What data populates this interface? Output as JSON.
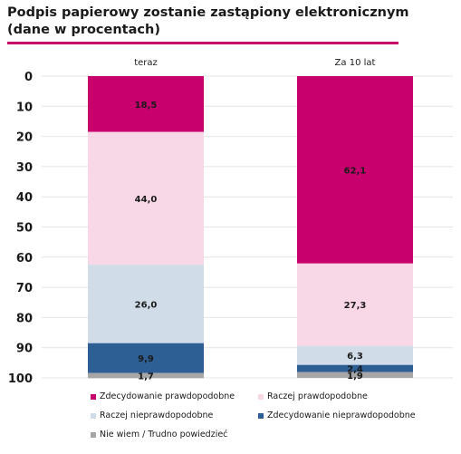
{
  "title": "Podpis papierowy zostanie zastąpiony elektronicznym (dane w procentach)",
  "colors": {
    "accent": "#c8006e",
    "grid": "#e4e4e4"
  },
  "chart_data": {
    "type": "bar",
    "stacked": true,
    "orientation": "vertical",
    "y_axis": "inverted",
    "title": "Podpis papierowy zostanie zastąpiony elektronicznym (dane w procentach)",
    "categories": [
      "teraz",
      "Za 10 lat"
    ],
    "ylim": [
      0,
      100
    ],
    "yticks": [
      "0",
      "10",
      "20",
      "30",
      "40",
      "50",
      "60",
      "70",
      "80",
      "90",
      "100"
    ],
    "grid": true,
    "legend_position": "bottom",
    "series": [
      {
        "name": "Zdecydowanie prawdopodobne",
        "color": "#c8006e",
        "values": [
          18.5,
          62.1
        ],
        "labels": [
          "18,5",
          "62,1"
        ]
      },
      {
        "name": "Raczej prawdopodobne",
        "color": "#f8d8e6",
        "values": [
          44.0,
          27.3
        ],
        "labels": [
          "44,0",
          "27,3"
        ]
      },
      {
        "name": "Raczej nieprawdopodobne",
        "color": "#d0dde8",
        "values": [
          26.0,
          6.3
        ],
        "labels": [
          "26,0",
          "6,3"
        ]
      },
      {
        "name": "Zdecydowanie nieprawdopodobne",
        "color": "#2e5f94",
        "values": [
          9.9,
          2.4
        ],
        "labels": [
          "9,9",
          "2,4"
        ]
      },
      {
        "name": "Nie wiem / Trudno powiedzieć",
        "color": "#a6a6a6",
        "values": [
          1.7,
          1.9
        ],
        "labels": [
          "1,7",
          "1,9"
        ]
      }
    ]
  }
}
